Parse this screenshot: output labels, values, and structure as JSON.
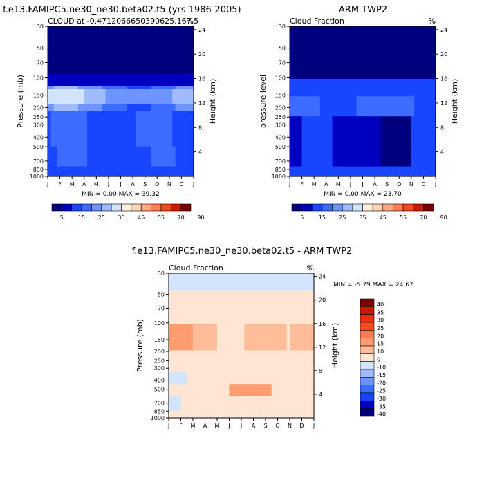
{
  "chart_data": [
    {
      "type": "heatmap",
      "title": "f.e13.FAMIPC5.ne30_ne30.beta02.t5 (yrs 1986-2005)",
      "left_subtitle": "CLOUD at -0.4712066650390625,167.5",
      "right_subtitle": "%",
      "ylabel": "Pressure (mb)",
      "right_ylabel": "Height (km)",
      "x_ticks": [
        "J",
        "F",
        "M",
        "A",
        "M",
        "J",
        "J",
        "A",
        "S",
        "O",
        "N",
        "D",
        "J"
      ],
      "y_ticks": [
        "30",
        "50",
        "70",
        "100",
        "150",
        "200",
        "250",
        "300",
        "400",
        "500",
        "700",
        "850",
        "1000"
      ],
      "height_ticks": [
        "24",
        "20",
        "16",
        "12",
        "8",
        "4"
      ],
      "stats": "MIN =   0.00 MAX =  39.32",
      "colorbar_labels": [
        "5",
        "15",
        "25",
        "35",
        "45",
        "55",
        "70",
        "90"
      ],
      "colorbar_colors": [
        "#00007f",
        "#0000c0",
        "#1846ff",
        "#3c6cff",
        "#6e94ff",
        "#a0bcff",
        "#d2e4ff",
        "#fff0e0",
        "#ffd2b0",
        "#ffaa80",
        "#ff7d50",
        "#f04c20",
        "#c81a00",
        "#7d0000"
      ],
      "fill": "mostly 5-25% with a brighter 25-35% band near 150 mb, dark above 100 mb"
    },
    {
      "type": "heatmap",
      "title": "ARM TWP2",
      "left_subtitle": "Cloud Fraction",
      "right_subtitle": "%",
      "ylabel": "pressure level",
      "right_ylabel": "Height (km)",
      "x_ticks": [
        "J",
        "F",
        "M",
        "A",
        "M",
        "J",
        "J",
        "A",
        "S",
        "O",
        "N",
        "D",
        "J"
      ],
      "y_ticks": [
        "30",
        "50",
        "70",
        "100",
        "150",
        "200",
        "250",
        "300",
        "400",
        "500",
        "700",
        "850",
        "1000"
      ],
      "height_ticks": [
        "24",
        "20",
        "16",
        "12",
        "8",
        "4"
      ],
      "stats": "MIN =   0.00 MAX =  23.70",
      "colorbar_labels": [
        "5",
        "15",
        "25",
        "35",
        "45",
        "55",
        "70",
        "90"
      ],
      "colorbar_colors": [
        "#00007f",
        "#0000c0",
        "#1846ff",
        "#3c6cff",
        "#6e94ff",
        "#a0bcff",
        "#d2e4ff",
        "#fff0e0",
        "#ffd2b0",
        "#ffaa80",
        "#ff7d50",
        "#f04c20",
        "#c81a00",
        "#7d0000"
      ],
      "fill": "mostly below 15% with 15-25% near 150 mb"
    },
    {
      "type": "heatmap",
      "title": "f.e13.FAMIPC5.ne30_ne30.beta02.t5 - ARM TWP2",
      "left_subtitle": "Cloud Fraction",
      "right_subtitle": "%",
      "ylabel": "Pressure (mb)",
      "right_ylabel": "Height (km)",
      "x_ticks": [
        "J",
        "F",
        "M",
        "A",
        "M",
        "J",
        "J",
        "A",
        "S",
        "O",
        "N",
        "D",
        "J"
      ],
      "y_ticks": [
        "30",
        "50",
        "70",
        "100",
        "150",
        "200",
        "250",
        "300",
        "400",
        "500",
        "700",
        "850",
        "1000"
      ],
      "height_ticks": [
        "24",
        "20",
        "16",
        "12",
        "8",
        "4"
      ],
      "stats": "MIN =  -5.79 MAX =  24.67",
      "colorbar_labels": [
        "40",
        "35",
        "30",
        "25",
        "20",
        "15",
        "10",
        "0",
        "-10",
        "-15",
        "-20",
        "-25",
        "-30",
        "-35",
        "-40"
      ],
      "colorbar_colors": [
        "#7d0000",
        "#c81a00",
        "#e83010",
        "#ff4a20",
        "#ff7a50",
        "#ff9c70",
        "#ffbc98",
        "#ffe6d2",
        "#d2e4ff",
        "#a0bcff",
        "#6e94ff",
        "#3c6cff",
        "#1846ff",
        "#0000c0",
        "#00007f"
      ],
      "fill": "mostly 0-10% difference with 10-20% band near 150 mb and around 500 mb; small negative patches near 30 mb and 300-400 mb"
    }
  ]
}
